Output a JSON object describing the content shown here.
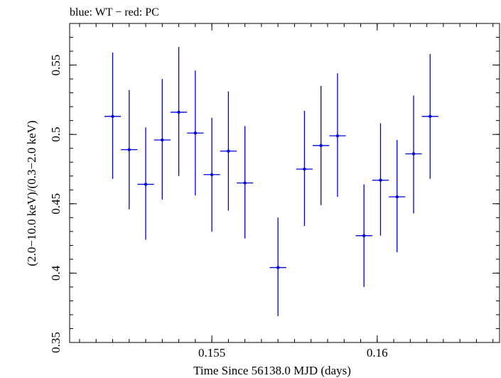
{
  "chart_data": {
    "type": "scatter",
    "title": "blue: WT − red: PC",
    "xlabel": "Time Since 56138.0 MJD (days)",
    "ylabel": "(2.0−10.0 keV)/(0.3−2.0 keV)",
    "xlim": [
      0.1507,
      0.1637
    ],
    "ylim": [
      0.35,
      0.58
    ],
    "xticks": [
      0.155,
      0.16
    ],
    "xtick_labels": [
      "0.155",
      "0.16"
    ],
    "yticks": [
      0.35,
      0.4,
      0.45,
      0.5,
      0.55
    ],
    "ytick_labels": [
      "0.35",
      "0.4",
      "0.45",
      "0.5",
      "0.55"
    ],
    "grid": false,
    "series": [
      {
        "name": "WT",
        "color": "#0000dd",
        "points": [
          {
            "x": 0.152,
            "y": 0.513,
            "xerr": 0.00025,
            "ylo": 0.468,
            "yhi": 0.559
          },
          {
            "x": 0.1525,
            "y": 0.489,
            "xerr": 0.00025,
            "ylo": 0.446,
            "yhi": 0.532
          },
          {
            "x": 0.153,
            "y": 0.464,
            "xerr": 0.00025,
            "ylo": 0.424,
            "yhi": 0.505
          },
          {
            "x": 0.1535,
            "y": 0.496,
            "xerr": 0.00025,
            "ylo": 0.453,
            "yhi": 0.54
          },
          {
            "x": 0.154,
            "y": 0.516,
            "xerr": 0.00025,
            "ylo": 0.47,
            "yhi": 0.563
          },
          {
            "x": 0.1545,
            "y": 0.501,
            "xerr": 0.00025,
            "ylo": 0.456,
            "yhi": 0.546
          },
          {
            "x": 0.155,
            "y": 0.471,
            "xerr": 0.00025,
            "ylo": 0.43,
            "yhi": 0.512
          },
          {
            "x": 0.1555,
            "y": 0.488,
            "xerr": 0.00025,
            "ylo": 0.445,
            "yhi": 0.531
          },
          {
            "x": 0.156,
            "y": 0.465,
            "xerr": 0.00025,
            "ylo": 0.425,
            "yhi": 0.506
          },
          {
            "x": 0.157,
            "y": 0.404,
            "xerr": 0.00025,
            "ylo": 0.369,
            "yhi": 0.44
          },
          {
            "x": 0.1578,
            "y": 0.475,
            "xerr": 0.00025,
            "ylo": 0.434,
            "yhi": 0.517
          },
          {
            "x": 0.1583,
            "y": 0.492,
            "xerr": 0.00025,
            "ylo": 0.449,
            "yhi": 0.535
          },
          {
            "x": 0.1588,
            "y": 0.499,
            "xerr": 0.00025,
            "ylo": 0.455,
            "yhi": 0.544
          },
          {
            "x": 0.1596,
            "y": 0.427,
            "xerr": 0.00025,
            "ylo": 0.39,
            "yhi": 0.464
          },
          {
            "x": 0.1601,
            "y": 0.467,
            "xerr": 0.00025,
            "ylo": 0.427,
            "yhi": 0.508
          },
          {
            "x": 0.1606,
            "y": 0.455,
            "xerr": 0.00025,
            "ylo": 0.415,
            "yhi": 0.496
          },
          {
            "x": 0.1611,
            "y": 0.486,
            "xerr": 0.00025,
            "ylo": 0.443,
            "yhi": 0.528
          },
          {
            "x": 0.1616,
            "y": 0.513,
            "xerr": 0.00025,
            "ylo": 0.468,
            "yhi": 0.558
          }
        ]
      }
    ]
  }
}
